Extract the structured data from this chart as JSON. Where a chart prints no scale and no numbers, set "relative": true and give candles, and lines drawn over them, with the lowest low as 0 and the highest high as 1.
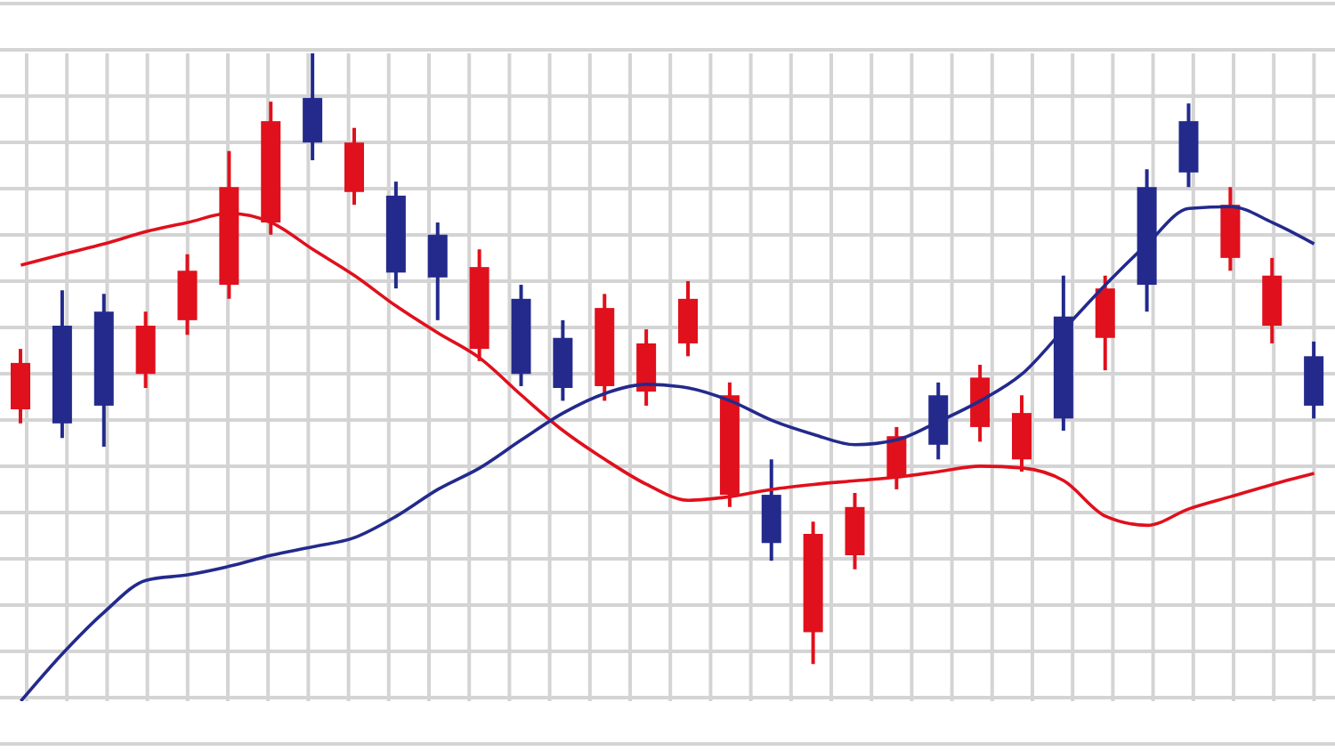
{
  "chart_data": {
    "type": "candlestick",
    "relative": true,
    "grid": true,
    "categories": [
      null,
      null,
      null,
      null,
      null,
      null,
      null,
      null,
      null,
      null,
      null,
      null,
      null,
      null,
      null,
      null,
      null,
      null,
      null,
      null,
      null,
      null,
      null,
      null,
      null,
      null,
      null,
      null,
      null,
      null,
      null,
      null
    ],
    "ohlc": [
      [
        0.417,
        0.516,
        0.394,
        0.493
      ],
      [
        0.554,
        0.612,
        0.37,
        0.394
      ],
      [
        0.577,
        0.606,
        0.356,
        0.423
      ],
      [
        0.475,
        0.577,
        0.452,
        0.554
      ],
      [
        0.563,
        0.671,
        0.539,
        0.644
      ],
      [
        0.621,
        0.84,
        0.598,
        0.781
      ],
      [
        0.723,
        0.921,
        0.703,
        0.889
      ],
      [
        0.927,
        1,
        0.825,
        0.854
      ],
      [
        0.773,
        0.878,
        0.752,
        0.854
      ],
      [
        0.767,
        0.79,
        0.615,
        0.641
      ],
      [
        0.703,
        0.723,
        0.563,
        0.633
      ],
      [
        0.516,
        0.679,
        0.496,
        0.65
      ],
      [
        0.598,
        0.621,
        0.455,
        0.475
      ],
      [
        0.534,
        0.563,
        0.431,
        0.452
      ],
      [
        0.455,
        0.606,
        0.431,
        0.583
      ],
      [
        0.446,
        0.548,
        0.423,
        0.525
      ],
      [
        0.525,
        0.627,
        0.504,
        0.598
      ],
      [
        0.277,
        0.461,
        0.257,
        0.44
      ],
      [
        0.277,
        0.335,
        0.169,
        0.198
      ],
      [
        0.052,
        0.233,
        0,
        0.213
      ],
      [
        0.178,
        0.28,
        0.155,
        0.257
      ],
      [
        0.306,
        0.388,
        0.286,
        0.373
      ],
      [
        0.44,
        0.461,
        0.335,
        0.359
      ],
      [
        0.388,
        0.49,
        0.364,
        0.469
      ],
      [
        0.335,
        0.44,
        0.315,
        0.411
      ],
      [
        0.569,
        0.636,
        0.382,
        0.402
      ],
      [
        0.534,
        0.636,
        0.481,
        0.615
      ],
      [
        0.781,
        0.81,
        0.577,
        0.621
      ],
      [
        0.889,
        0.918,
        0.781,
        0.805
      ],
      [
        0.665,
        0.781,
        0.644,
        0.752
      ],
      [
        0.554,
        0.665,
        0.525,
        0.636
      ],
      [
        0.504,
        0.528,
        0.402,
        0.423
      ]
    ],
    "colors": [
      "#e0101c",
      "#232a8c",
      "#232a8c",
      "#e0101c",
      "#e0101c",
      "#e0101c",
      "#e0101c",
      "#232a8c",
      "#e0101c",
      "#232a8c",
      "#232a8c",
      "#e0101c",
      "#232a8c",
      "#232a8c",
      "#e0101c",
      "#e0101c",
      "#e0101c",
      "#e0101c",
      "#232a8c",
      "#e0101c",
      "#e0101c",
      "#e0101c",
      "#232a8c",
      "#e0101c",
      "#e0101c",
      "#232a8c",
      "#e0101c",
      "#232a8c",
      "#232a8c",
      "#e0101c",
      "#e0101c",
      "#232a8c"
    ],
    "series": [
      {
        "type": "line",
        "color": "#e0101c",
        "values": [
          0.653,
          0.671,
          0.688,
          0.708,
          0.723,
          0.738,
          0.723,
          0.679,
          0.636,
          0.586,
          0.542,
          0.501,
          0.44,
          0.382,
          0.335,
          0.294,
          0.268,
          0.274,
          0.286,
          0.294,
          0.3,
          0.306,
          0.315,
          0.324,
          0.321,
          0.3,
          0.242,
          0.227,
          0.254,
          0.274,
          0.294,
          0.312
        ]
      },
      {
        "type": "line",
        "color": "#232a8c",
        "values": [
          -0.061,
          0.017,
          0.085,
          0.137,
          0.146,
          0.16,
          0.178,
          0.192,
          0.207,
          0.242,
          0.286,
          0.321,
          0.367,
          0.411,
          0.443,
          0.458,
          0.452,
          0.431,
          0.399,
          0.376,
          0.359,
          0.367,
          0.397,
          0.431,
          0.475,
          0.548,
          0.621,
          0.688,
          0.746,
          0.749,
          0.723,
          0.688
        ]
      }
    ]
  }
}
